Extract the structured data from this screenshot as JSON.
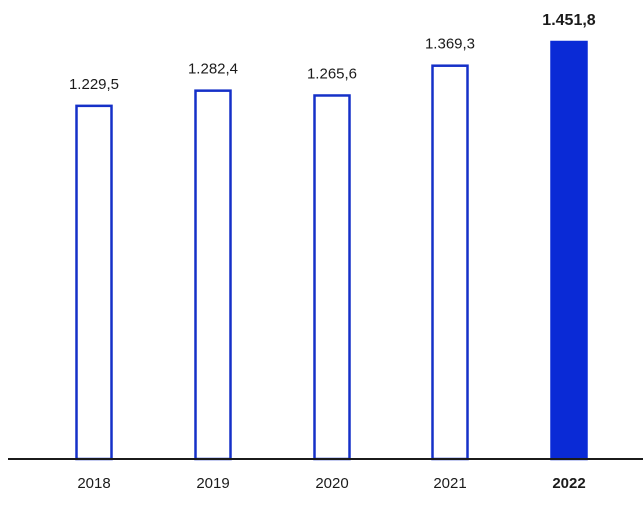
{
  "chart_data": {
    "type": "bar",
    "categories": [
      "2018",
      "2019",
      "2020",
      "2021",
      "2022"
    ],
    "values": [
      1229.5,
      1282.4,
      1265.6,
      1369.3,
      1451.8
    ],
    "value_labels": [
      "1.229,5",
      "1.282,4",
      "1.265,6",
      "1.369,3",
      "1.451,8"
    ],
    "highlight_index": 4,
    "title": "",
    "xlabel": "",
    "ylabel": "",
    "ylim": [
      0,
      1451.8
    ],
    "grid": false,
    "legend": "none"
  },
  "colors": {
    "bar_outline": "#1530c8",
    "bar_highlight": "#0a2ad6",
    "bar_fill": "#ffffff",
    "axis": "#1b1b1b",
    "text": "#1b1b1b"
  }
}
